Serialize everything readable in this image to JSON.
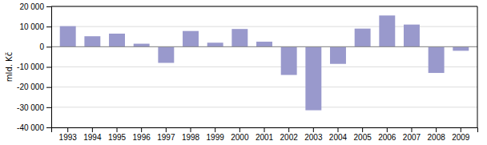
{
  "chart_data": {
    "type": "bar",
    "categories": [
      "1993",
      "1994",
      "1995",
      "1996",
      "1997",
      "1998",
      "1999",
      "2000",
      "2001",
      "2002",
      "2003",
      "2004",
      "2005",
      "2006",
      "2007",
      "2008",
      "2009"
    ],
    "values": [
      10200,
      5200,
      6500,
      1500,
      -8000,
      7800,
      2000,
      8800,
      2500,
      -14000,
      -31500,
      -8500,
      9000,
      15500,
      11000,
      -13000,
      -2000
    ],
    "color": "#9999cc",
    "ylabel": "mld. Kč",
    "ylim": [
      -40000,
      20000
    ],
    "yticks": [
      {
        "value": -40000,
        "label": "-40 000"
      },
      {
        "value": -30000,
        "label": "-30 000"
      },
      {
        "value": -20000,
        "label": "-20 000"
      },
      {
        "value": -10000,
        "label": "-10 000"
      },
      0,
      {
        "value": 10000,
        "label": "10 000"
      },
      {
        "value": 20000,
        "label": "20 000"
      }
    ],
    "grid": true
  }
}
